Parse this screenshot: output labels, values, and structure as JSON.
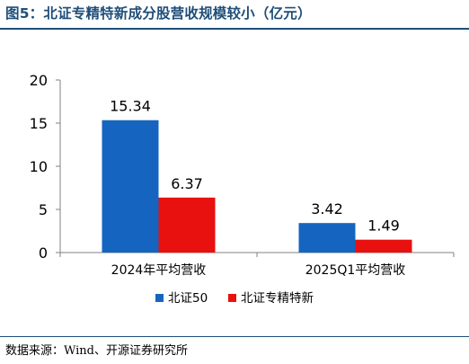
{
  "header": {
    "title": "图5：北证专精特新成分股营收规模较小（亿元）"
  },
  "footer": {
    "source": "数据来源：Wind、开源证券研究所"
  },
  "chart_data": {
    "type": "bar",
    "categories": [
      "2024年平均营收",
      "2025Q1平均营收"
    ],
    "series": [
      {
        "name": "北证50",
        "values": [
          15.34,
          3.42
        ],
        "color": "#1565c0"
      },
      {
        "name": "北证专精特新",
        "values": [
          6.37,
          1.49
        ],
        "color": "#e8110f"
      }
    ],
    "ylim": [
      0,
      20
    ],
    "yticks": [
      0,
      5,
      10,
      15,
      20
    ],
    "ytick_labels": [
      "0",
      "5",
      "10",
      "15",
      "20"
    ],
    "data_labels": [
      "15.34",
      "6.37",
      "3.42",
      "1.49"
    ],
    "legend_position": "bottom",
    "grid": false
  }
}
